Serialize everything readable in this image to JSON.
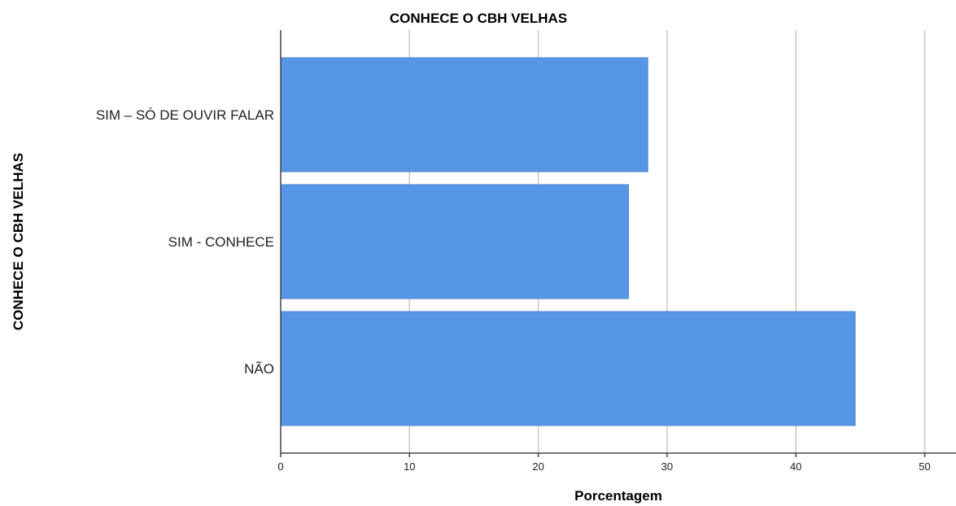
{
  "chart_data": {
    "type": "bar",
    "orientation": "horizontal",
    "title": "CONHECE O CBH VELHAS",
    "xlabel": "Porcentagem",
    "ylabel": "CONHECE O CBH VELHAS",
    "categories": [
      "SIM – SÓ DE OUVIR FALAR",
      "SIM - CONHECE",
      "NÃO"
    ],
    "values": [
      28.5,
      27.0,
      44.6
    ],
    "xlim": [
      0,
      52
    ],
    "xticks": [
      "0",
      "10",
      "20",
      "30",
      "40",
      "50"
    ],
    "grid": "vertical",
    "legend": "none",
    "bar_color": "#5596e6"
  }
}
